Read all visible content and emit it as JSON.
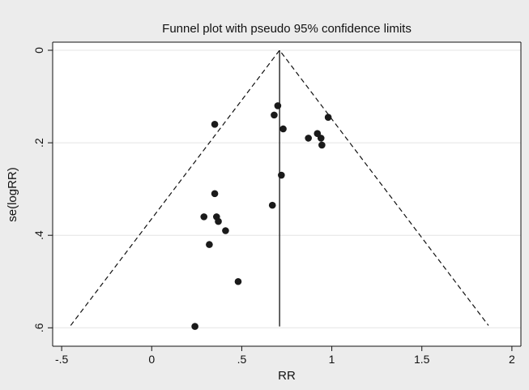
{
  "chart_data": {
    "type": "scatter",
    "title": "Funnel plot with pseudo 95% confidence limits",
    "xlabel": "RR",
    "ylabel": "se(logRR)",
    "xlim": [
      -0.55,
      2.05
    ],
    "ylim": [
      0,
      0.61
    ],
    "y_inverted": true,
    "x_ticks": [
      -0.5,
      0,
      0.5,
      1,
      1.5,
      2
    ],
    "x_tick_labels": [
      "-.5",
      "0",
      ".5",
      "1",
      "1.5",
      "2"
    ],
    "y_ticks": [
      0,
      0.2,
      0.4,
      0.6
    ],
    "y_tick_labels": [
      "0",
      ".2",
      ".4",
      ".6"
    ],
    "grid": "horizontal",
    "pooled_estimate": 0.71,
    "funnel_lines": [
      {
        "style": "dashed",
        "points": [
          [
            -0.45,
            0.595
          ],
          [
            0.71,
            0
          ],
          [
            1.87,
            0.595
          ]
        ]
      }
    ],
    "points": [
      {
        "x": 0.7,
        "y": 0.12
      },
      {
        "x": 0.68,
        "y": 0.14
      },
      {
        "x": 0.35,
        "y": 0.16
      },
      {
        "x": 0.73,
        "y": 0.17
      },
      {
        "x": 0.98,
        "y": 0.145
      },
      {
        "x": 0.87,
        "y": 0.19
      },
      {
        "x": 0.92,
        "y": 0.18
      },
      {
        "x": 0.94,
        "y": 0.19
      },
      {
        "x": 0.945,
        "y": 0.205
      },
      {
        "x": 0.72,
        "y": 0.27
      },
      {
        "x": 0.67,
        "y": 0.335
      },
      {
        "x": 0.35,
        "y": 0.31
      },
      {
        "x": 0.29,
        "y": 0.36
      },
      {
        "x": 0.36,
        "y": 0.36
      },
      {
        "x": 0.37,
        "y": 0.37
      },
      {
        "x": 0.41,
        "y": 0.39
      },
      {
        "x": 0.32,
        "y": 0.42
      },
      {
        "x": 0.48,
        "y": 0.5
      },
      {
        "x": 0.24,
        "y": 0.597
      }
    ]
  }
}
